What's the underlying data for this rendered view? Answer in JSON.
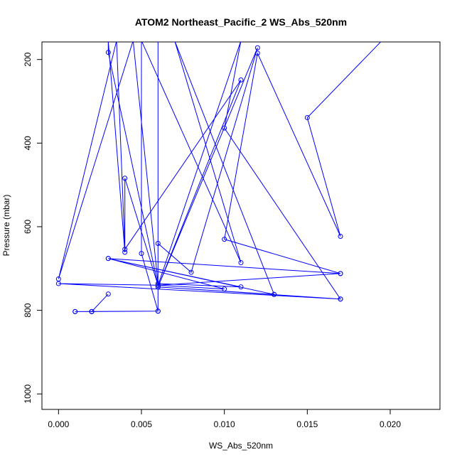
{
  "chart_data": {
    "type": "line",
    "title": "ATOM2 Northeast_Pacific_2 WS_Abs_520nm",
    "xlabel": "WS_Abs_520nm",
    "ylabel": "Pressure (mbar)",
    "xlim": [
      -0.001,
      0.023
    ],
    "ylim": [
      1037,
      158
    ],
    "y_reversed": true,
    "grid": false,
    "legend": "none",
    "x_ticks": [
      0.0,
      0.005,
      0.01,
      0.015,
      0.02
    ],
    "x_tick_labels": [
      "0.000",
      "0.005",
      "0.010",
      "0.015",
      "0.020"
    ],
    "y_ticks": [
      200,
      400,
      600,
      800,
      1000
    ],
    "y_tick_labels": [
      "200",
      "400",
      "600",
      "800",
      "1000"
    ],
    "series": [
      {
        "color": "#0000ff",
        "marker": "open-circle",
        "points": [
          {
            "x": 0.0195,
            "y": 155,
            "marker": false
          },
          {
            "x": 0.015,
            "y": 339,
            "marker": true
          },
          {
            "x": 0.017,
            "y": 623,
            "marker": true
          },
          {
            "x": 0.012,
            "y": 185,
            "marker": true
          },
          {
            "x": 0.01,
            "y": 630,
            "marker": true
          },
          {
            "x": 0.017,
            "y": 712,
            "marker": true
          },
          {
            "x": 0.003,
            "y": 676,
            "marker": true
          },
          {
            "x": 0.011,
            "y": 744,
            "marker": true
          },
          {
            "x": 0.006,
            "y": 736,
            "marker": true
          },
          {
            "x": 0.0045,
            "y": 155,
            "marker": false
          },
          {
            "x": 0.0,
            "y": 725,
            "marker": true
          },
          {
            "x": 0.0035,
            "y": 155,
            "marker": false
          },
          {
            "x": 0.004,
            "y": 654,
            "marker": true
          },
          {
            "x": 0.011,
            "y": 249,
            "marker": true
          },
          {
            "x": 0.006,
            "y": 744,
            "marker": true
          },
          {
            "x": 0.012,
            "y": 172,
            "marker": true
          },
          {
            "x": 0.008,
            "y": 709,
            "marker": true
          },
          {
            "x": 0.006,
            "y": 640,
            "marker": true
          },
          {
            "x": 0.006,
            "y": 155,
            "marker": false
          },
          {
            "x": 0.006,
            "y": 740,
            "marker": true
          },
          {
            "x": 0.004,
            "y": 484,
            "marker": true
          },
          {
            "x": 0.004,
            "y": 661,
            "marker": true
          },
          {
            "x": 0.003,
            "y": 155,
            "marker": false
          },
          {
            "x": 0.003,
            "y": 183,
            "marker": true
          },
          {
            "x": 0.006,
            "y": 740,
            "marker": true
          },
          {
            "x": 0.01,
            "y": 749,
            "marker": true
          },
          {
            "x": 0.003,
            "y": 676,
            "marker": true
          },
          {
            "x": 0.013,
            "y": 762,
            "marker": true
          },
          {
            "x": 0.007,
            "y": 155,
            "marker": false
          },
          {
            "x": 0.011,
            "y": 686,
            "marker": true
          },
          {
            "x": 0.005,
            "y": 155,
            "marker": false
          },
          {
            "x": 0.005,
            "y": 664,
            "marker": true
          },
          {
            "x": 0.006,
            "y": 802,
            "marker": true
          },
          {
            "x": 0.002,
            "y": 803,
            "marker": true
          },
          {
            "x": 0.001,
            "y": 803,
            "marker": true
          },
          {
            "x": 0.002,
            "y": 803,
            "marker": true
          },
          {
            "x": 0.003,
            "y": 761,
            "marker": true
          },
          {
            "x": 0.002,
            "y": 803,
            "marker": true
          },
          {
            "x": 0.001,
            "y": 803,
            "marker": true
          },
          {
            "x": 0.006,
            "y": 802,
            "marker": true
          },
          {
            "x": 0.006,
            "y": 744,
            "marker": true
          },
          {
            "x": 0.013,
            "y": 762,
            "marker": true
          },
          {
            "x": 0.006,
            "y": 744,
            "marker": true
          },
          {
            "x": 0.017,
            "y": 773,
            "marker": true
          },
          {
            "x": 0.01,
            "y": 364,
            "marker": true
          },
          {
            "x": 0.011,
            "y": 155,
            "marker": false
          },
          {
            "x": 0.006,
            "y": 740,
            "marker": true
          },
          {
            "x": 0.017,
            "y": 712,
            "marker": true
          },
          {
            "x": 0.006,
            "y": 740,
            "marker": true
          },
          {
            "x": 0.0,
            "y": 736,
            "marker": true
          },
          {
            "x": 0.017,
            "y": 773,
            "marker": true
          }
        ]
      }
    ]
  }
}
